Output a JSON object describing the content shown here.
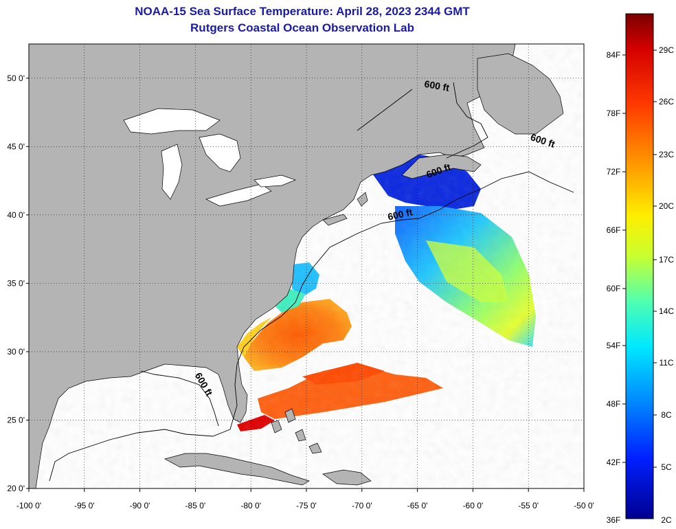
{
  "title": "NOAA-15 Sea Surface Temperature:  April 28, 2023 2344 GMT",
  "subtitle": "Rutgers Coastal Ocean Observation Lab",
  "map": {
    "lon_range": [
      -100,
      -50
    ],
    "lat_range": [
      20,
      52.5
    ],
    "lat_ticks": [
      "50 0'",
      "45 0'",
      "40 0'",
      "35 0'",
      "30 0'",
      "25 0'",
      "20 0'"
    ],
    "lat_tick_values": [
      50,
      45,
      40,
      35,
      30,
      25,
      20
    ],
    "lon_ticks": [
      "-100 0'",
      "-95 0'",
      "-90 0'",
      "-85 0'",
      "-80 0'",
      "-75 0'",
      "-70 0'",
      "-65 0'",
      "-60 0'",
      "-55 0'",
      "-50 0'"
    ],
    "lon_tick_values": [
      -100,
      -95,
      -90,
      -85,
      -80,
      -75,
      -70,
      -65,
      -60,
      -55,
      -50
    ],
    "grid": "dotted",
    "land_color": "#b4b4b4",
    "ocean_no_data_color": "#ffffff",
    "contour_label": "600 ft",
    "contour_labels": [
      {
        "text": "600 ft",
        "lon": -66.5,
        "lat": 39.8
      },
      {
        "text": "600 ft",
        "lon": -63,
        "lat": 43.0
      },
      {
        "text": "600 ft",
        "lon": -53.8,
        "lat": 45.2
      },
      {
        "text": "600 ft",
        "lon": -63.3,
        "lat": 49.2
      },
      {
        "text": "600 ft",
        "lon": -84.5,
        "lat": 27.5
      }
    ]
  },
  "colorbar": {
    "f_labels": [
      "84F",
      "78F",
      "72F",
      "66F",
      "60F",
      "54F",
      "48F",
      "42F",
      "36F"
    ],
    "c_labels": [
      "29C",
      "26C",
      "23C",
      "20C",
      "17C",
      "14C",
      "11C",
      "8C",
      "5C",
      "2C"
    ],
    "colors": [
      "#800000",
      "#ff0000",
      "#ff8000",
      "#ffff00",
      "#80ff80",
      "#00ffff",
      "#0080ff",
      "#0000ff",
      "#000080"
    ]
  }
}
